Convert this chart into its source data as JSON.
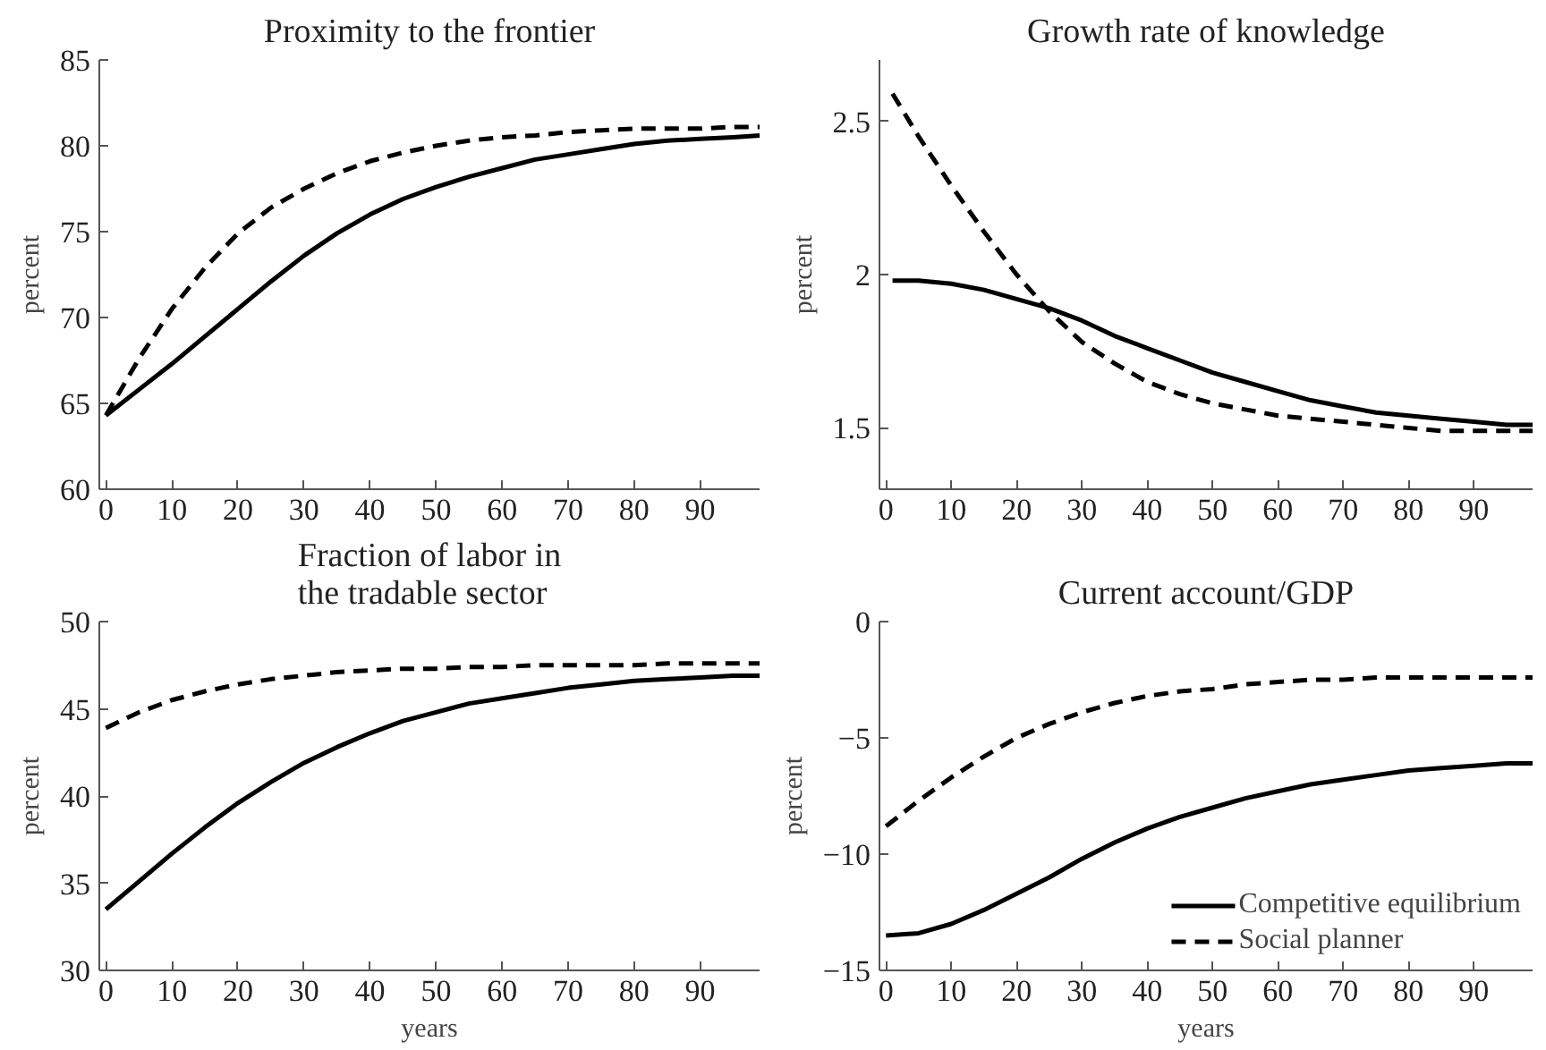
{
  "chart_data": [
    {
      "type": "line",
      "title": "Proximity to the frontier",
      "ylabel": "percent",
      "x": [
        0,
        5,
        10,
        15,
        20,
        25,
        30,
        35,
        40,
        45,
        50,
        55,
        60,
        65,
        70,
        75,
        80,
        85,
        90,
        95,
        99
      ],
      "xlim": [
        -1,
        99
      ],
      "xticks": [
        0,
        10,
        20,
        30,
        40,
        50,
        60,
        70,
        80,
        90
      ],
      "ylim": [
        60,
        85
      ],
      "yticks": [
        60,
        65,
        70,
        75,
        80,
        85
      ],
      "grid": false,
      "series": [
        {
          "color": "#000000",
          "line_style": "solid",
          "values": [
            64.3,
            65.8,
            67.3,
            68.9,
            70.5,
            72.1,
            73.6,
            74.9,
            76.0,
            76.9,
            77.6,
            78.2,
            78.7,
            79.2,
            79.5,
            79.8,
            80.1,
            80.3,
            80.4,
            80.5,
            80.6
          ]
        },
        {
          "color": "#000000",
          "line_style": "dashed",
          "values": [
            64.3,
            67.6,
            70.5,
            72.9,
            74.9,
            76.4,
            77.5,
            78.4,
            79.1,
            79.6,
            80.0,
            80.3,
            80.5,
            80.6,
            80.8,
            80.9,
            81.0,
            81.0,
            81.0,
            81.1,
            81.1
          ]
        }
      ]
    },
    {
      "type": "line",
      "title": "Growth rate of knowledge",
      "ylabel": "percent",
      "x": [
        1,
        5,
        10,
        15,
        20,
        25,
        30,
        35,
        40,
        45,
        50,
        55,
        60,
        65,
        70,
        75,
        80,
        85,
        90,
        95,
        99
      ],
      "xlim": [
        -1,
        99
      ],
      "xticks": [
        0,
        10,
        20,
        30,
        40,
        50,
        60,
        70,
        80,
        90
      ],
      "ylim": [
        1.3,
        2.7
      ],
      "yticks": [
        1.5,
        2,
        2.5
      ],
      "grid": false,
      "series": [
        {
          "color": "#000000",
          "line_style": "solid",
          "values": [
            1.98,
            1.98,
            1.97,
            1.95,
            1.92,
            1.89,
            1.85,
            1.8,
            1.76,
            1.72,
            1.68,
            1.65,
            1.62,
            1.59,
            1.57,
            1.55,
            1.54,
            1.53,
            1.52,
            1.51,
            1.51
          ]
        },
        {
          "color": "#000000",
          "line_style": "dashed",
          "values": [
            2.59,
            2.45,
            2.29,
            2.14,
            2.0,
            1.88,
            1.78,
            1.71,
            1.65,
            1.61,
            1.58,
            1.56,
            1.54,
            1.53,
            1.52,
            1.51,
            1.5,
            1.49,
            1.49,
            1.49,
            1.49
          ]
        }
      ]
    },
    {
      "type": "line",
      "title": "Fraction of labor in\nthe tradable sector",
      "ylabel": "percent",
      "xlabel": "years",
      "x": [
        0,
        5,
        10,
        15,
        20,
        25,
        30,
        35,
        40,
        45,
        50,
        55,
        60,
        65,
        70,
        75,
        80,
        85,
        90,
        95,
        99
      ],
      "xlim": [
        -1,
        99
      ],
      "xticks": [
        0,
        10,
        20,
        30,
        40,
        50,
        60,
        70,
        80,
        90
      ],
      "ylim": [
        30,
        50
      ],
      "yticks": [
        30,
        35,
        40,
        45,
        50
      ],
      "grid": false,
      "series": [
        {
          "color": "#000000",
          "line_style": "solid",
          "values": [
            33.5,
            35.1,
            36.7,
            38.2,
            39.6,
            40.8,
            41.9,
            42.8,
            43.6,
            44.3,
            44.8,
            45.3,
            45.6,
            45.9,
            46.2,
            46.4,
            46.6,
            46.7,
            46.8,
            46.9,
            46.9
          ]
        },
        {
          "color": "#000000",
          "line_style": "dashed",
          "values": [
            43.9,
            44.8,
            45.5,
            46.0,
            46.4,
            46.7,
            46.9,
            47.1,
            47.2,
            47.3,
            47.3,
            47.4,
            47.4,
            47.5,
            47.5,
            47.5,
            47.5,
            47.6,
            47.6,
            47.6,
            47.6
          ]
        }
      ]
    },
    {
      "type": "line",
      "title": "Current account/GDP",
      "ylabel": "percent",
      "xlabel": "years",
      "x": [
        0,
        5,
        10,
        15,
        20,
        25,
        30,
        35,
        40,
        45,
        50,
        55,
        60,
        65,
        70,
        75,
        80,
        85,
        90,
        95,
        99
      ],
      "xlim": [
        -1,
        99
      ],
      "xticks": [
        0,
        10,
        20,
        30,
        40,
        50,
        60,
        70,
        80,
        90
      ],
      "ylim": [
        -15,
        0
      ],
      "yticks": [
        {
          "value": -15,
          "label": "−15"
        },
        {
          "value": -10,
          "label": "−10"
        },
        {
          "value": -5,
          "label": "−5"
        },
        0
      ],
      "grid": false,
      "legend": "bottom right",
      "series": [
        {
          "name": "Competitive equilibrium",
          "color": "#000000",
          "line_style": "solid",
          "values": [
            -13.5,
            -13.4,
            -13.0,
            -12.4,
            -11.7,
            -11.0,
            -10.2,
            -9.5,
            -8.9,
            -8.4,
            -8.0,
            -7.6,
            -7.3,
            -7.0,
            -6.8,
            -6.6,
            -6.4,
            -6.3,
            -6.2,
            -6.1,
            -6.1
          ]
        },
        {
          "name": "Social planner",
          "color": "#000000",
          "line_style": "dashed",
          "values": [
            -8.8,
            -7.7,
            -6.7,
            -5.8,
            -5.0,
            -4.4,
            -3.9,
            -3.5,
            -3.2,
            -3.0,
            -2.9,
            -2.7,
            -2.6,
            -2.5,
            -2.5,
            -2.4,
            -2.4,
            -2.4,
            -2.4,
            -2.4,
            -2.4
          ]
        }
      ]
    }
  ]
}
